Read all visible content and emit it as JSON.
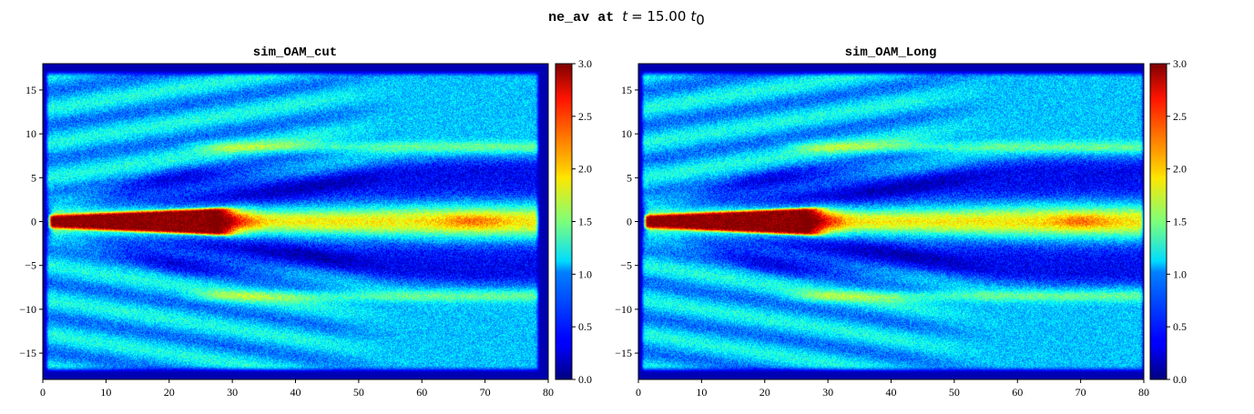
{
  "figure": {
    "suptitle_var": "ne_av",
    "suptitle_at": "at",
    "suptitle_t": "t",
    "suptitle_eq": "= 15.00",
    "suptitle_t0": "t",
    "suptitle_t0_sub": "0"
  },
  "colors": {
    "colormap": "jet",
    "background": "#ffffff"
  },
  "chart_data": [
    {
      "type": "heatmap",
      "title": "sim_OAM_cut",
      "xlim": [
        0,
        80
      ],
      "ylim": [
        -18,
        18
      ],
      "xticks": [
        0,
        10,
        20,
        30,
        40,
        50,
        60,
        70,
        80
      ],
      "yticks": [
        15,
        10,
        5,
        0,
        -5,
        -10,
        -15
      ],
      "xtick_labels": [
        "0",
        "10",
        "20",
        "30",
        "40",
        "50",
        "60",
        "70",
        "80"
      ],
      "ytick_labels": [
        "15",
        "10",
        "5",
        "0",
        "−5",
        "−10",
        "−15"
      ],
      "colorbar": {
        "range": [
          0,
          3
        ],
        "ticks": [
          0,
          0.5,
          1,
          1.5,
          2,
          2.5,
          3
        ],
        "tick_labels": [
          "0.0",
          "0.5",
          "1.0",
          "1.5",
          "2.0",
          "2.5",
          "3.0"
        ]
      },
      "features": {
        "slab_x": [
          0.5,
          78.5
        ],
        "slab_y": [
          -17,
          17
        ],
        "slab_level": 0.95,
        "channel_level": 0.35,
        "channel_halfwidth": 5.5,
        "core_x_end": 29,
        "core_level": 3.0,
        "core_halfwidth_start": 0.6,
        "core_halfwidth_end": 1.5,
        "axis_plume_level": 1.9,
        "hot_spot_x": 68,
        "hot_spot_level": 2.3,
        "walls_y": [
          8.5,
          -8.5
        ],
        "walls_x_start": 30,
        "walls_level": 1.9
      }
    },
    {
      "type": "heatmap",
      "title": "sim_OAM_Long",
      "xlim": [
        0,
        80
      ],
      "ylim": [
        -18,
        18
      ],
      "xticks": [
        0,
        10,
        20,
        30,
        40,
        50,
        60,
        70,
        80
      ],
      "yticks": [
        15,
        10,
        5,
        0,
        -5,
        -10,
        -15
      ],
      "xtick_labels": [
        "0",
        "10",
        "20",
        "30",
        "40",
        "50",
        "60",
        "70",
        "80"
      ],
      "ytick_labels": [
        "15",
        "10",
        "5",
        "0",
        "−5",
        "−10",
        "−15"
      ],
      "colorbar": {
        "range": [
          0,
          3
        ],
        "ticks": [
          0,
          0.5,
          1,
          1.5,
          2,
          2.5,
          3
        ],
        "tick_labels": [
          "0.0",
          "0.5",
          "1.0",
          "1.5",
          "2.0",
          "2.5",
          "3.0"
        ]
      },
      "features": {
        "slab_x": [
          0.5,
          80
        ],
        "slab_y": [
          -17,
          17
        ],
        "slab_level": 0.95,
        "channel_level": 0.35,
        "channel_halfwidth": 5.5,
        "core_x_end": 28,
        "core_level": 3.0,
        "core_halfwidth_start": 0.6,
        "core_halfwidth_end": 1.5,
        "axis_plume_level": 1.9,
        "hot_spot_x": 70,
        "hot_spot_level": 2.3,
        "walls_y": [
          8.5,
          -8.5
        ],
        "walls_x_start": 30,
        "walls_level": 1.9
      }
    }
  ]
}
